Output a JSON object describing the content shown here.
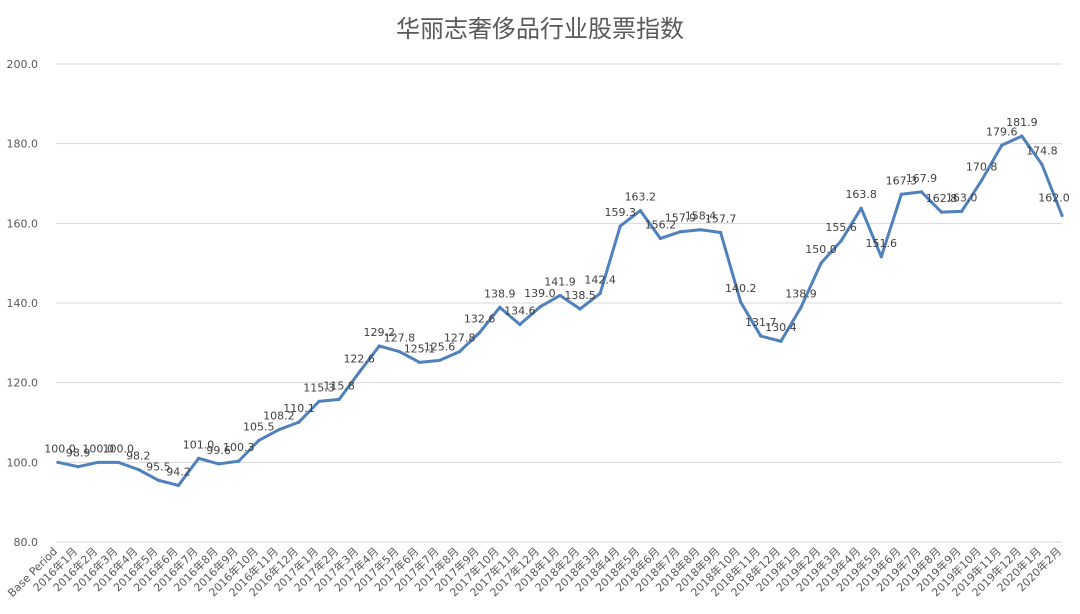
{
  "chart_data": {
    "type": "line",
    "title": "华丽志奢侈品行业股票指数",
    "xlabel": "",
    "ylabel": "",
    "ylim": [
      80,
      200
    ],
    "yticks": [
      "80.0",
      "100.0",
      "120.0",
      "140.0",
      "160.0",
      "180.0",
      "200.0"
    ],
    "grid": true,
    "legend": "none",
    "line_color": "#4f81bd",
    "categories": [
      "Base Period",
      "2016年1月",
      "2016年2月",
      "2016年3月",
      "2016年4月",
      "2016年5月",
      "2016年6月",
      "2016年7月",
      "2016年8月",
      "2016年9月",
      "2016年10月",
      "2016年11月",
      "2016年12月",
      "2017年1月",
      "2017年2月",
      "2017年3月",
      "2017年4月",
      "2017年5月",
      "2017年6月",
      "2017年7月",
      "2017年8月",
      "2017年9月",
      "2017年10月",
      "2017年11月",
      "2017年12月",
      "2018年1月",
      "2018年2月",
      "2018年3月",
      "2018年4月",
      "2018年5月",
      "2018年6月",
      "2018年7月",
      "2018年8月",
      "2018年9月",
      "2018年10月",
      "2018年11月",
      "2018年12月",
      "2019年1月",
      "2019年2月",
      "2019年3月",
      "2019年4月",
      "2019年5月",
      "2019年6月",
      "2019年7月",
      "2019年8月",
      "2019年9月",
      "2019年10月",
      "2019年11月",
      "2019年12月",
      "2020年1月",
      "2020年2月"
    ],
    "values": [
      100.0,
      98.9,
      100.0,
      100.0,
      98.2,
      95.5,
      94.2,
      101.0,
      99.6,
      100.3,
      105.5,
      108.2,
      110.1,
      115.3,
      115.8,
      122.6,
      129.2,
      127.8,
      125.1,
      125.6,
      127.8,
      132.6,
      138.9,
      134.6,
      139.0,
      141.9,
      138.5,
      142.4,
      159.3,
      163.2,
      156.2,
      157.9,
      158.4,
      157.7,
      140.2,
      131.7,
      130.4,
      138.9,
      150.0,
      155.6,
      163.8,
      151.6,
      167.3,
      167.9,
      162.8,
      163.0,
      170.8,
      179.6,
      181.9,
      174.8,
      162.0
    ],
    "data_labels": [
      "100.0",
      "98.9",
      "100.0",
      "100.0",
      "98.2",
      "95.5",
      "94.2",
      "101.0",
      "99.6",
      "100.3",
      "105.5",
      "108.2",
      "110.1",
      "115.3",
      "115.8",
      "122.6",
      "129.2",
      "127.8",
      "125.1",
      "125.6",
      "127.8",
      "132.6",
      "138.9",
      "134.6",
      "139.0",
      "141.9",
      "138.5",
      "142.4",
      "159.3",
      "163.2",
      "156.2",
      "157.9",
      "158.4",
      "157.7",
      "140.2",
      "131.7",
      "130.4",
      "138.9",
      "150.0",
      "155.6",
      "163.8",
      "151.6",
      "167.3",
      "167.9",
      "162.8",
      "163.0",
      "170.8",
      "179.6",
      "181.9",
      "174.8",
      "162.0"
    ]
  }
}
